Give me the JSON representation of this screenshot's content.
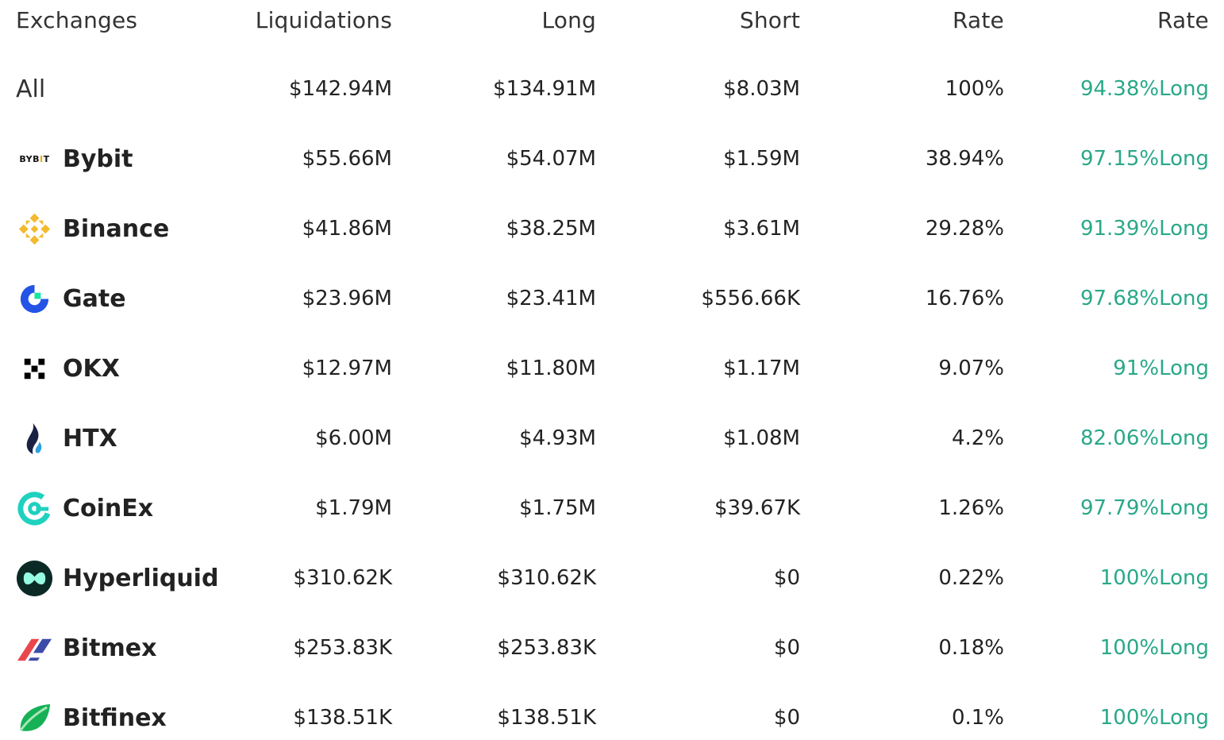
{
  "headers": {
    "exchanges": "Exchanges",
    "liquidations": "Liquidations",
    "long": "Long",
    "short": "Short",
    "rate": "Rate",
    "rate2": "Rate"
  },
  "rows": [
    {
      "name": "All",
      "liquidations": "$142.94M",
      "long": "$134.91M",
      "short": "$8.03M",
      "rate": "100%",
      "rate2": "94.38%Long"
    },
    {
      "name": "Bybit",
      "logo_text": "BYB",
      "logo_text_accent": "I",
      "logo_text_end": "T",
      "icon": "bybit-icon",
      "liquidations": "$55.66M",
      "long": "$54.07M",
      "short": "$1.59M",
      "rate": "38.94%",
      "rate2": "97.15%Long"
    },
    {
      "name": "Binance",
      "icon": "binance-icon",
      "liquidations": "$41.86M",
      "long": "$38.25M",
      "short": "$3.61M",
      "rate": "29.28%",
      "rate2": "91.39%Long"
    },
    {
      "name": "Gate",
      "icon": "gate-icon",
      "liquidations": "$23.96M",
      "long": "$23.41M",
      "short": "$556.66K",
      "rate": "16.76%",
      "rate2": "97.68%Long"
    },
    {
      "name": "OKX",
      "icon": "okx-icon",
      "liquidations": "$12.97M",
      "long": "$11.80M",
      "short": "$1.17M",
      "rate": "9.07%",
      "rate2": "91%Long"
    },
    {
      "name": "HTX",
      "icon": "htx-icon",
      "liquidations": "$6.00M",
      "long": "$4.93M",
      "short": "$1.08M",
      "rate": "4.2%",
      "rate2": "82.06%Long"
    },
    {
      "name": "CoinEx",
      "icon": "coinex-icon",
      "liquidations": "$1.79M",
      "long": "$1.75M",
      "short": "$39.67K",
      "rate": "1.26%",
      "rate2": "97.79%Long"
    },
    {
      "name": "Hyperliquid",
      "icon": "hyperliquid-icon",
      "liquidations": "$310.62K",
      "long": "$310.62K",
      "short": "$0",
      "rate": "0.22%",
      "rate2": "100%Long"
    },
    {
      "name": "Bitmex",
      "icon": "bitmex-icon",
      "liquidations": "$253.83K",
      "long": "$253.83K",
      "short": "$0",
      "rate": "0.18%",
      "rate2": "100%Long"
    },
    {
      "name": "Bitfinex",
      "icon": "bitfinex-icon",
      "liquidations": "$138.51K",
      "long": "$138.51K",
      "short": "$0",
      "rate": "0.1%",
      "rate2": "100%Long"
    }
  ],
  "colors": {
    "long_rate": "#2aa889",
    "text": "#222222"
  }
}
